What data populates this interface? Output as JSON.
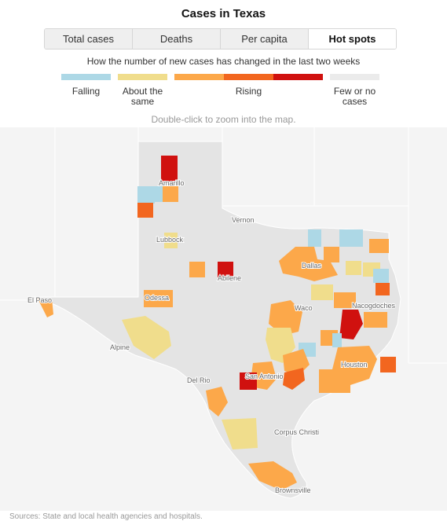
{
  "title": "Cases in Texas",
  "tabs": [
    {
      "label": "Total cases",
      "active": false
    },
    {
      "label": "Deaths",
      "active": false
    },
    {
      "label": "Per capita",
      "active": false
    },
    {
      "label": "Hot spots",
      "active": true
    }
  ],
  "legend": {
    "title": "How the number of new cases has changed in the last two weeks",
    "categories": [
      {
        "label": "Falling",
        "color": "#add8e6"
      },
      {
        "label": "About the same",
        "color": "#f0dd8c"
      },
      {
        "label": "Rising",
        "colors": [
          "#fca84a",
          "#f2661f",
          "#d0110f"
        ]
      },
      {
        "label": "Few or no cases",
        "color": "#ebebeb"
      }
    ]
  },
  "hint": "Double-click to zoom into the map.",
  "cities": [
    "Amarillo",
    "Lubbock",
    "Vernon",
    "Dallas",
    "Abilene",
    "Odessa",
    "El Paso",
    "Waco",
    "Nacogdoches",
    "Alpine",
    "Houston",
    "San Antonio",
    "Del Rio",
    "Corpus Christi",
    "Brownsville"
  ],
  "colors": {
    "state": "#e4e4e4",
    "neighbors": "#f4f4f4",
    "falling": "#add8e6",
    "same": "#f0dd8c",
    "rising1": "#fca84a",
    "rising2": "#f2661f",
    "rising3": "#d0110f"
  },
  "source": "Sources: State and local health agencies and hospitals."
}
